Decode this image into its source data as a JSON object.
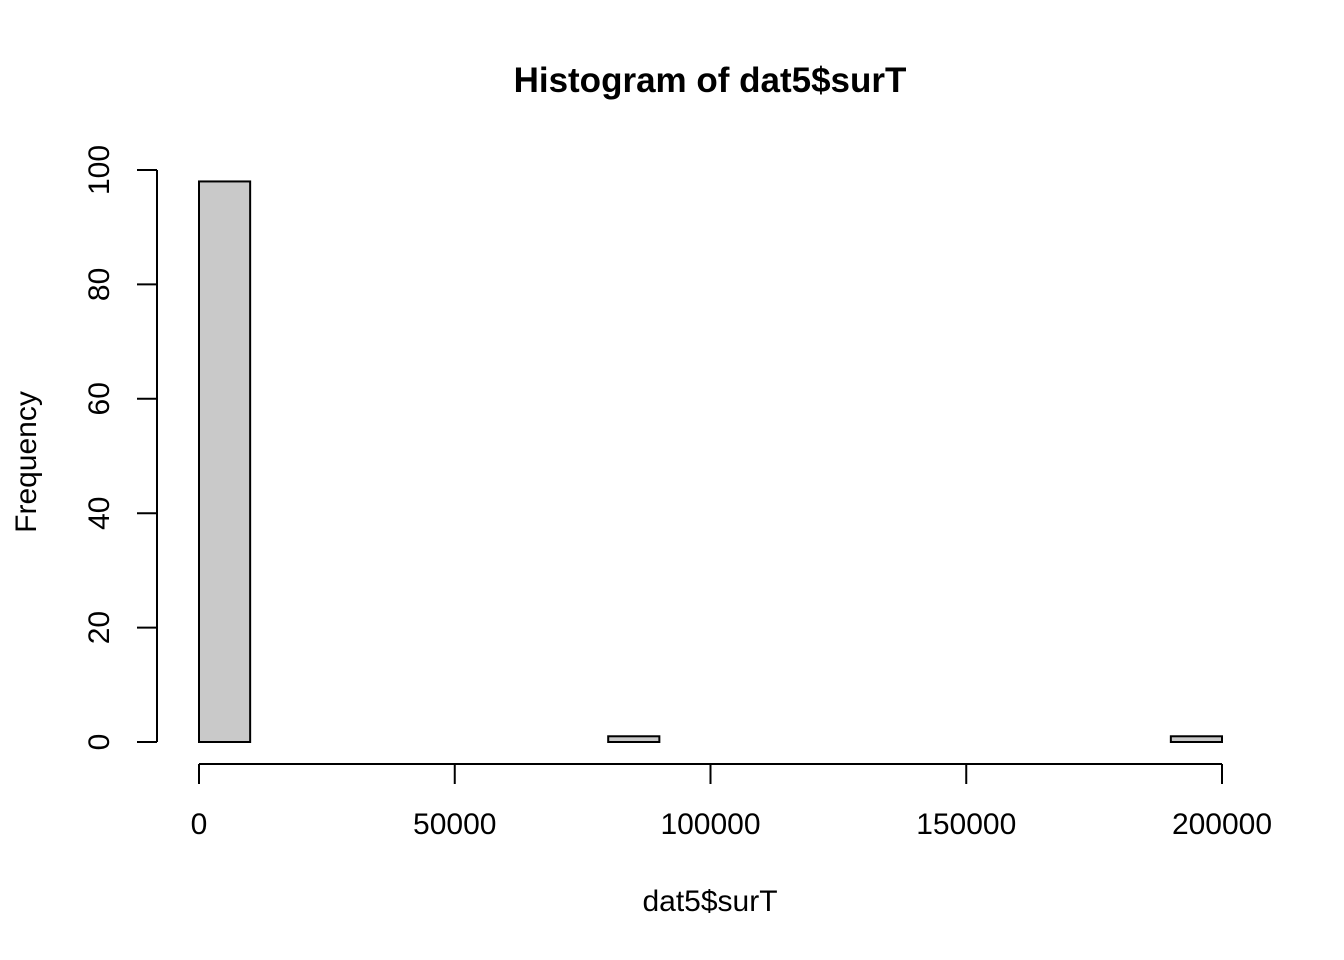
{
  "chart_data": {
    "type": "bar",
    "title": "Histogram of dat5$surT",
    "xlabel": "dat5$surT",
    "ylabel": "Frequency",
    "xlim": [
      0,
      200000
    ],
    "ylim": [
      0,
      100
    ],
    "x_ticks": [
      0,
      50000,
      100000,
      150000,
      200000
    ],
    "y_ticks": [
      0,
      20,
      40,
      60,
      80,
      100
    ],
    "bin_width": 10000,
    "bins": [
      {
        "start": 0,
        "end": 10000,
        "count": 98
      },
      {
        "start": 10000,
        "end": 20000,
        "count": 0
      },
      {
        "start": 20000,
        "end": 30000,
        "count": 0
      },
      {
        "start": 30000,
        "end": 40000,
        "count": 0
      },
      {
        "start": 40000,
        "end": 50000,
        "count": 0
      },
      {
        "start": 50000,
        "end": 60000,
        "count": 0
      },
      {
        "start": 60000,
        "end": 70000,
        "count": 0
      },
      {
        "start": 70000,
        "end": 80000,
        "count": 0
      },
      {
        "start": 80000,
        "end": 90000,
        "count": 1
      },
      {
        "start": 90000,
        "end": 100000,
        "count": 0
      },
      {
        "start": 100000,
        "end": 110000,
        "count": 0
      },
      {
        "start": 110000,
        "end": 120000,
        "count": 0
      },
      {
        "start": 120000,
        "end": 130000,
        "count": 0
      },
      {
        "start": 130000,
        "end": 140000,
        "count": 0
      },
      {
        "start": 140000,
        "end": 150000,
        "count": 0
      },
      {
        "start": 150000,
        "end": 160000,
        "count": 0
      },
      {
        "start": 160000,
        "end": 170000,
        "count": 0
      },
      {
        "start": 170000,
        "end": 180000,
        "count": 0
      },
      {
        "start": 180000,
        "end": 190000,
        "count": 0
      },
      {
        "start": 190000,
        "end": 200000,
        "count": 1
      }
    ],
    "bar_color": "#c9c9c9",
    "grid": false
  }
}
